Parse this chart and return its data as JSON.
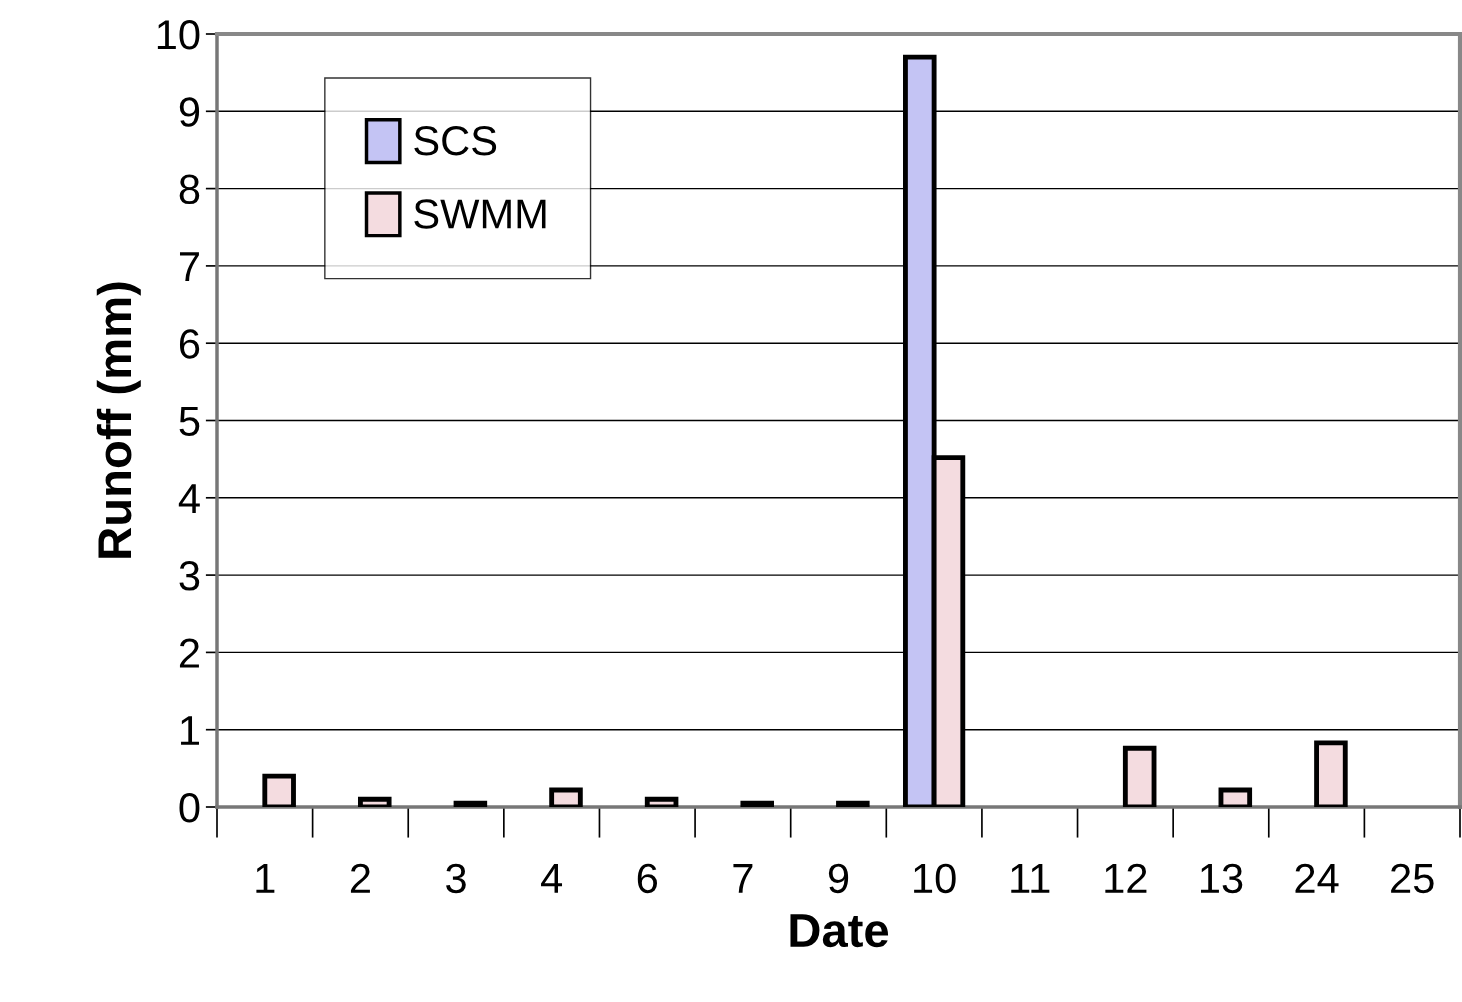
{
  "chart_data": {
    "type": "bar",
    "xlabel": "Date",
    "ylabel": "Runoff (mm)",
    "categories": [
      "1",
      "2",
      "3",
      "4",
      "6",
      "7",
      "9",
      "10",
      "11",
      "12",
      "13",
      "24",
      "25"
    ],
    "series": [
      {
        "name": "SCS",
        "color": "#c4c4f4",
        "values": [
          null,
          null,
          null,
          null,
          null,
          null,
          null,
          9.7,
          null,
          null,
          null,
          null,
          null
        ]
      },
      {
        "name": "SWMM",
        "color": "#f4dce0",
        "values": [
          0.4,
          0.1,
          0.05,
          0.22,
          0.1,
          0.05,
          0.05,
          4.52,
          null,
          0.76,
          0.22,
          0.83,
          null
        ]
      }
    ],
    "ylim": [
      0,
      10
    ],
    "yticks": [
      0,
      1,
      2,
      3,
      4,
      5,
      6,
      7,
      8,
      9,
      10
    ],
    "grid": "y",
    "legend": "top left"
  }
}
